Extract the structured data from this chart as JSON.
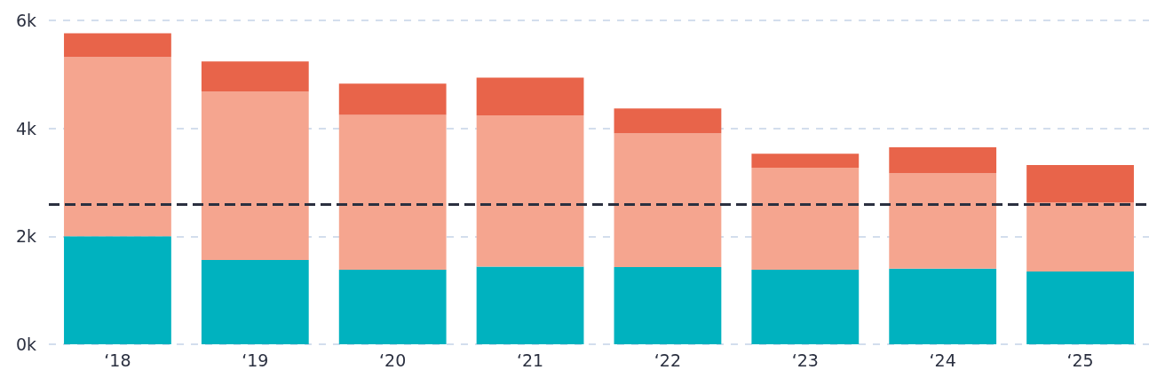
{
  "chart_data": {
    "type": "bar",
    "stacked": true,
    "categories": [
      "‘18",
      "‘19",
      "‘20",
      "‘21",
      "‘22",
      "‘23",
      "‘24",
      "‘25"
    ],
    "series": [
      {
        "color": "#00b2bf",
        "values": [
          2000,
          1560,
          1380,
          1440,
          1430,
          1380,
          1400,
          1350
        ]
      },
      {
        "color": "#f5a58f",
        "values": [
          3320,
          3120,
          2870,
          2800,
          2480,
          1890,
          1770,
          1280
        ]
      },
      {
        "color": "#e8644a",
        "values": [
          440,
          560,
          580,
          700,
          460,
          260,
          480,
          690
        ]
      }
    ],
    "ylim": [
      0,
      6000
    ],
    "yticks": [
      {
        "value": 0,
        "label": "0k"
      },
      {
        "value": 2000,
        "label": "2k"
      },
      {
        "value": 4000,
        "label": "4k"
      },
      {
        "value": 6000,
        "label": "6k"
      }
    ],
    "grid": "y",
    "ref_lines": [
      {
        "axis": "y",
        "value": 2600,
        "color": "#2b3040",
        "line_style": "dashed"
      }
    ]
  }
}
